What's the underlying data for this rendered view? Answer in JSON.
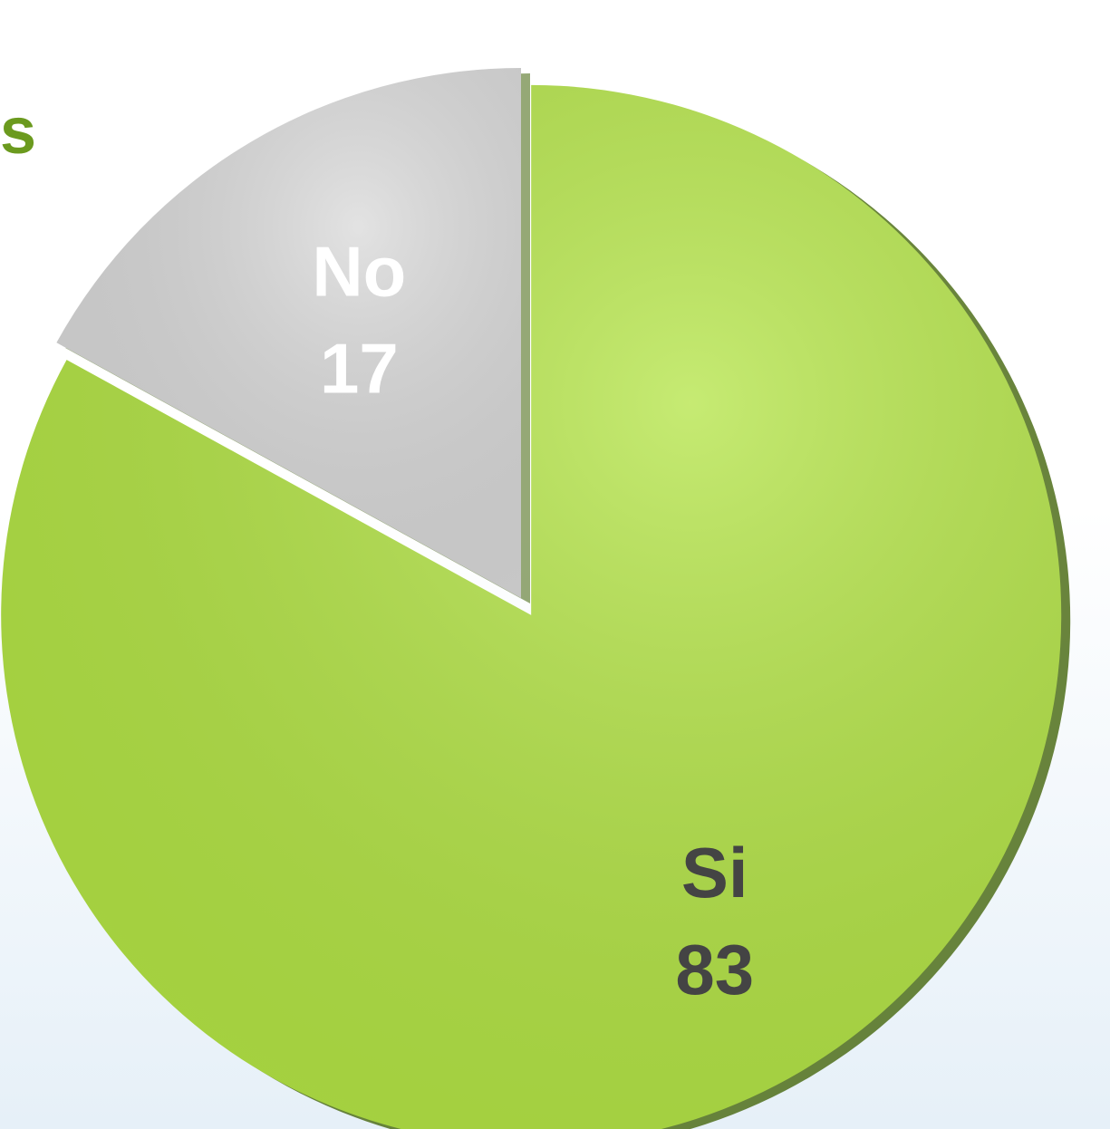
{
  "chart_data": {
    "type": "pie",
    "title": "s",
    "categories": [
      "Si",
      "No"
    ],
    "values": [
      83,
      17
    ],
    "colors": [
      "#b3e444",
      "#d9d9d9"
    ],
    "label_colors": [
      "#444444",
      "#ffffff"
    ]
  }
}
